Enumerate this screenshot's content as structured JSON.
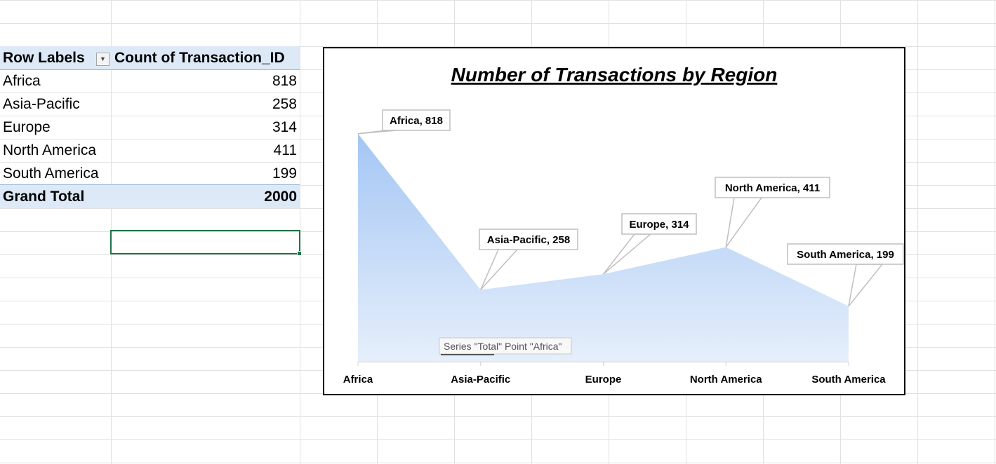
{
  "pivot": {
    "header": {
      "row_labels": "Row Labels",
      "value_header": "Count of Transaction_ID"
    },
    "rows": [
      {
        "label": "Africa",
        "value": "818"
      },
      {
        "label": "Asia-Pacific",
        "value": "258"
      },
      {
        "label": "Europe",
        "value": "314"
      },
      {
        "label": "North America",
        "value": "411"
      },
      {
        "label": "South America",
        "value": "199"
      }
    ],
    "grand_total": {
      "label": "Grand Total",
      "value": "2000"
    },
    "filter_icon": "dropdown-arrow-icon"
  },
  "colors": {
    "pivot_band": "#dde9f6",
    "area_top": "#a4c6f4",
    "area_bottom": "#e6effb",
    "gridline": "#e1e1e1",
    "selection": "#217346"
  },
  "chart_data": {
    "type": "area",
    "title": "Number of Transactions by Region",
    "categories": [
      "Africa",
      "Asia-Pacific",
      "Europe",
      "North America",
      "South America"
    ],
    "series": [
      {
        "values": [
          818,
          258,
          314,
          411,
          199
        ]
      }
    ],
    "data_labels": [
      "Africa, 818",
      "Asia-Pacific, 258",
      "Europe, 314",
      "North America, 411",
      "South America, 199"
    ],
    "ylim": [
      0,
      830
    ],
    "grid": false,
    "legend": "none",
    "xlabel": "",
    "ylabel": ""
  },
  "tooltip": {
    "text": "Series \"Total\" Point \"Africa\""
  }
}
